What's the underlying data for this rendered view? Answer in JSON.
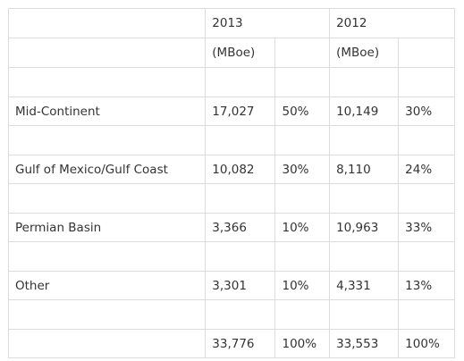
{
  "header": {
    "year_2013": "2013",
    "year_2012": "2012",
    "unit_2013": "(MBoe)",
    "unit_2012": "(MBoe)"
  },
  "rows": [
    {
      "label": "Mid-Continent",
      "v2013": "17,027",
      "p2013": "50%",
      "v2012": "10,149",
      "p2012": "30%"
    },
    {
      "label": "Gulf of Mexico/Gulf Coast",
      "v2013": "10,082",
      "p2013": "30%",
      "v2012": "8,110",
      "p2012": "24%"
    },
    {
      "label": "Permian Basin",
      "v2013": "3,366",
      "p2013": "10%",
      "v2012": "10,963",
      "p2012": "33%"
    },
    {
      "label": "Other",
      "v2013": "3,301",
      "p2013": "10%",
      "v2012": "4,331",
      "p2012": "13%"
    }
  ],
  "total": {
    "v2013": "33,776",
    "p2013": "100%",
    "v2012": "33,553",
    "p2012": "100%"
  }
}
